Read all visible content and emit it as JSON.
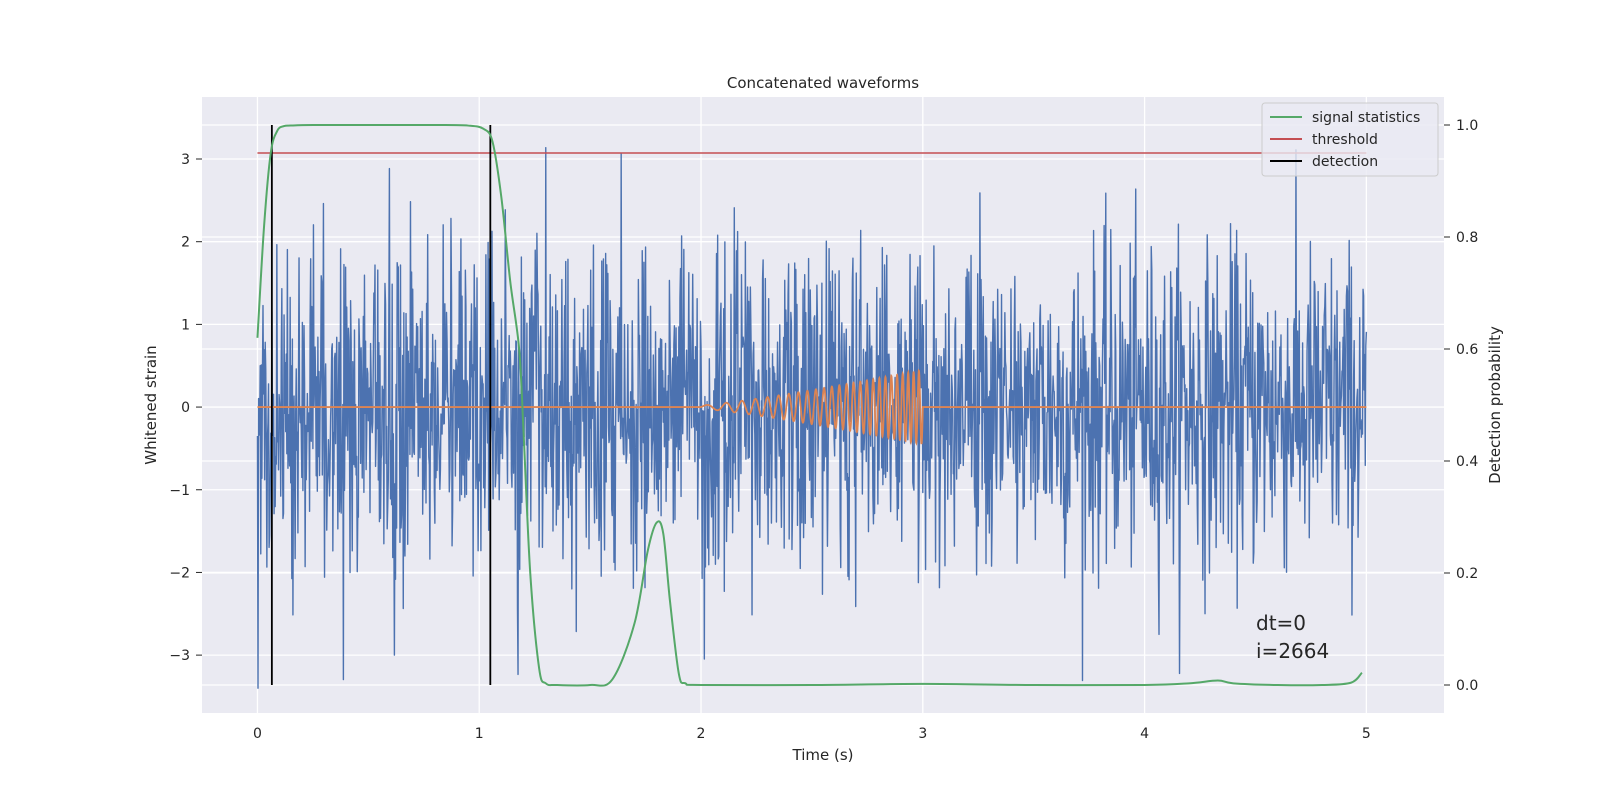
{
  "chart_data": {
    "type": "line",
    "title": "Concatenated waveforms",
    "xlabel": "Time (s)",
    "ylabel": "Whitened strain",
    "y2label": "Detection probability",
    "xlim": [
      -0.25,
      5.35
    ],
    "ylim": [
      -3.7,
      3.75
    ],
    "y2lim": [
      -0.05,
      1.05
    ],
    "x_ticks": [
      0,
      1,
      2,
      3,
      4,
      5
    ],
    "x_tick_labels": [
      "0",
      "1",
      "2",
      "3",
      "4",
      "5"
    ],
    "y_ticks": [
      -3,
      -2,
      -1,
      0,
      1,
      2,
      3
    ],
    "y_tick_labels": [
      "−3",
      "−2",
      "−1",
      "0",
      "1",
      "2",
      "3"
    ],
    "y2_ticks": [
      0.0,
      0.2,
      0.4,
      0.6,
      0.8,
      1.0
    ],
    "y2_tick_labels": [
      "0.0",
      "0.2",
      "0.4",
      "0.6",
      "0.8",
      "1.0"
    ],
    "grid": true,
    "legend_position": "top-right",
    "legend": [
      {
        "label": "signal statistics",
        "color": "#55a868"
      },
      {
        "label": "threshold",
        "color": "#c44e52"
      },
      {
        "label": "detection",
        "color": "#000000"
      }
    ],
    "colors": {
      "strain": "#4c72b0",
      "injection": "#dd8452",
      "signal_statistics": "#55a868",
      "threshold": "#c44e52",
      "detection": "#000000",
      "background": "#eaeaf2",
      "grid": "#ffffff"
    },
    "strain_noise": {
      "x_range": [
        0,
        5
      ],
      "typical_amplitude": 1.6,
      "max_peak": 3.4,
      "min_trough": -3.4,
      "samples": 2000,
      "seed": 2664
    },
    "injection": {
      "x_start": 2.0,
      "x_end": 3.0,
      "amplitude_start": 0.02,
      "amplitude_end": 0.45,
      "cycles": 26
    },
    "threshold": {
      "x": [
        0,
        5
      ],
      "y2": 0.95
    },
    "detections": [
      0.065,
      1.05
    ],
    "signal_statistics": {
      "x": [
        0.0,
        0.03,
        0.06,
        0.09,
        0.12,
        0.15,
        0.25,
        0.5,
        0.8,
        0.95,
        1.02,
        1.06,
        1.1,
        1.14,
        1.18,
        1.2,
        1.23,
        1.27,
        1.3,
        1.35,
        1.5,
        1.6,
        1.7,
        1.76,
        1.8,
        1.83,
        1.86,
        1.9,
        1.93,
        2.0,
        2.5,
        3.0,
        3.5,
        4.0,
        4.2,
        4.33,
        4.4,
        4.6,
        4.8,
        4.93,
        4.98
      ],
      "y2": [
        0.62,
        0.82,
        0.95,
        0.99,
        0.998,
        0.999,
        1.0,
        1.0,
        1.0,
        0.999,
        0.993,
        0.97,
        0.87,
        0.72,
        0.6,
        0.45,
        0.2,
        0.03,
        0.003,
        0.0,
        0.0,
        0.01,
        0.11,
        0.24,
        0.29,
        0.27,
        0.15,
        0.02,
        0.003,
        0.0,
        0.0,
        0.002,
        0.0,
        0.0,
        0.003,
        0.008,
        0.003,
        0.0,
        0.0,
        0.004,
        0.022
      ]
    },
    "annotations": [
      "dt=0",
      "i=2664"
    ]
  }
}
